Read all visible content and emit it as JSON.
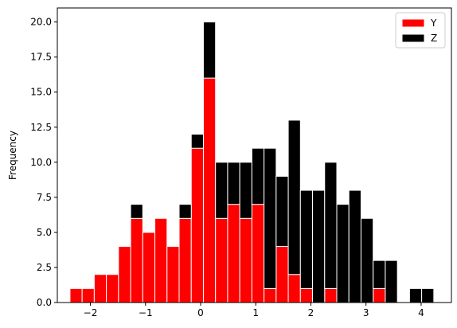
{
  "chart_data": {
    "type": "bar",
    "subtype": "stacked-histogram",
    "title": "",
    "xlabel": "",
    "ylabel": "Frequency",
    "xlim": [
      -2.6,
      4.55
    ],
    "ylim": [
      0,
      21
    ],
    "x_ticks": [
      -2,
      -1,
      0,
      1,
      2,
      3,
      4
    ],
    "y_ticks": [
      0.0,
      2.5,
      5.0,
      7.5,
      10.0,
      12.5,
      15.0,
      17.5,
      20.0
    ],
    "y_tick_labels": [
      "0.0",
      "2.5",
      "5.0",
      "7.5",
      "10.0",
      "12.5",
      "15.0",
      "17.5",
      "20.0"
    ],
    "x_tick_labels": [
      "−2",
      "−1",
      "0",
      "1",
      "2",
      "3",
      "4"
    ],
    "grid": false,
    "legend_position": "top-right",
    "bin_edges": [
      -2.37,
      -2.15,
      -1.93,
      -1.71,
      -1.49,
      -1.27,
      -1.05,
      -0.83,
      -0.61,
      -0.39,
      -0.17,
      0.05,
      0.27,
      0.49,
      0.71,
      0.93,
      1.15,
      1.37,
      1.59,
      1.81,
      2.03,
      2.25,
      2.47,
      2.69,
      2.91,
      3.13,
      3.35,
      3.57,
      3.79,
      4.01,
      4.23
    ],
    "series": [
      {
        "name": "Y",
        "color": "#ff0000",
        "values": [
          1,
          1,
          2,
          2,
          4,
          6,
          5,
          6,
          4,
          6,
          11,
          16,
          6,
          7,
          6,
          7,
          1,
          4,
          2,
          1,
          0,
          1,
          0,
          0,
          0,
          1,
          0,
          0,
          0,
          0
        ]
      },
      {
        "name": "Z",
        "color": "#000000",
        "values": [
          0,
          0,
          0,
          0,
          0,
          1,
          0,
          0,
          0,
          1,
          1,
          4,
          4,
          3,
          4,
          4,
          10,
          5,
          11,
          7,
          8,
          9,
          7,
          8,
          6,
          2,
          3,
          0,
          1,
          1
        ]
      }
    ],
    "bar_edge_color": "#ffffff"
  }
}
